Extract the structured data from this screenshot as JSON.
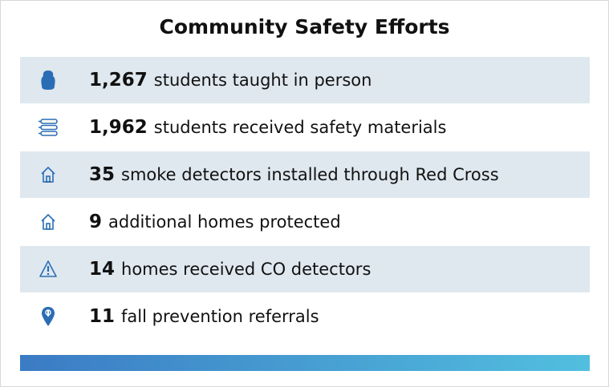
{
  "title": "Community Safety Efforts",
  "items": [
    {
      "number": "1,267",
      "text": "students taught in person"
    },
    {
      "number": "1,962",
      "text": "students received safety materials"
    },
    {
      "number": "35",
      "text": "smoke detectors installed through Red Cross"
    },
    {
      "number": "9",
      "text": "additional homes protected"
    },
    {
      "number": "14",
      "text": "homes received CO detectors"
    },
    {
      "number": "11",
      "text": "fall prevention referrals"
    }
  ]
}
